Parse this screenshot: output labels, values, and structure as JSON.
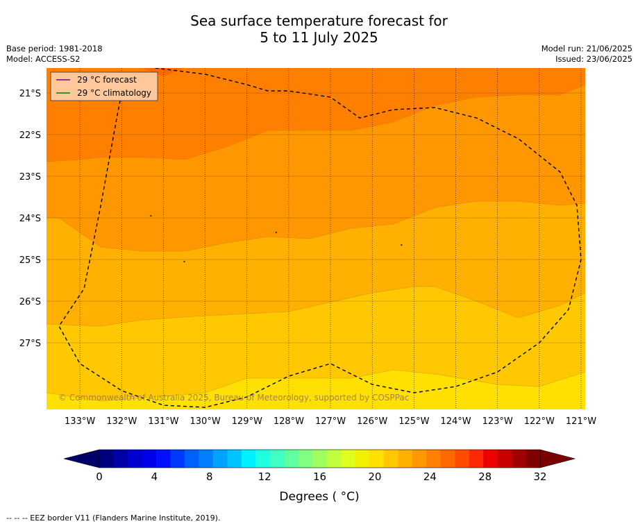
{
  "header": {
    "title_line1": "Sea surface temperature forecast for",
    "title_line2": "5 to 11 July 2025",
    "base_period": "Base period: 1981-2018",
    "model": "Model: ACCESS-S2",
    "model_run": "Model run: 21/06/2025",
    "issued": "Issued: 23/06/2025"
  },
  "map": {
    "copyright": "© Commonwealth of Australia 2025, Bureau of Meteorology, supported by COSPPac"
  },
  "legend": {
    "forecast_label": "29 °C  forecast",
    "forecast_color": "#800080",
    "climatology_label": "29 °C  climatology",
    "climatology_color": "#008000"
  },
  "colorbar": {
    "label": "Degrees ( °C)",
    "ticks": [
      "0",
      "4",
      "8",
      "12",
      "16",
      "20",
      "24",
      "28",
      "32"
    ],
    "colors": [
      "#00007f",
      "#0000a8",
      "#0000cc",
      "#0000e8",
      "#0010ff",
      "#0038ff",
      "#0060ff",
      "#0080ff",
      "#00a4ff",
      "#00c4ff",
      "#00f0ff",
      "#20ffe0",
      "#40ffc0",
      "#60ffa0",
      "#80ff80",
      "#a0ff60",
      "#c0ff40",
      "#e0ff20",
      "#f0f000",
      "#ffe000",
      "#ffc800",
      "#ffb000",
      "#ff9800",
      "#ff8000",
      "#ff6800",
      "#ff4c00",
      "#ff2800",
      "#ee0000",
      "#c80000",
      "#a00000",
      "#800000"
    ],
    "under_color": "#00006a",
    "over_color": "#7a0000"
  },
  "footer": {
    "note": "--  --  -- EEZ border V11 (Flanders Marine Institute, 2019)."
  },
  "chart_data": {
    "type": "heatmap",
    "title": "Sea surface temperature forecast for 5 to 11 July 2025",
    "x_ticks": [
      "133°W",
      "132°W",
      "131°W",
      "130°W",
      "129°W",
      "128°W",
      "127°W",
      "126°W",
      "125°W",
      "124°W",
      "123°W",
      "122°W",
      "121°W"
    ],
    "y_ticks": [
      "21°S",
      "22°S",
      "23°S",
      "24°S",
      "25°S",
      "26°S",
      "27°S"
    ],
    "x_values": [
      -133,
      -132,
      -131,
      -130,
      -129,
      -128,
      -127,
      -126,
      -125,
      -124,
      -123,
      -122,
      -121
    ],
    "y_values": [
      -21,
      -22,
      -23,
      -24,
      -25,
      -26,
      -27
    ],
    "xlim": [
      -133.8,
      -120.9
    ],
    "ylim": [
      -28.6,
      -20.4
    ],
    "contour_levels": [
      22,
      23,
      24,
      25,
      26,
      27
    ],
    "fill_colors": {
      "22-23": "#ffe000",
      "23-24": "#ffc800",
      "24-25": "#ffb000",
      "25-26": "#ff9800",
      "26-27": "#ff8000",
      "27-28": "#ff6800"
    },
    "isotherms": [
      {
        "level": 23,
        "points": [
          [
            -133.8,
            -28.2
          ],
          [
            -132.5,
            -28.4
          ],
          [
            -130.0,
            -28.2
          ],
          [
            -129.0,
            -27.85
          ],
          [
            -127.5,
            -27.85
          ],
          [
            -126.5,
            -27.85
          ],
          [
            -125.5,
            -27.65
          ],
          [
            -124.5,
            -27.75
          ],
          [
            -123.0,
            -28.0
          ],
          [
            -122.0,
            -28.05
          ],
          [
            -120.9,
            -27.7
          ]
        ]
      },
      {
        "level": 24,
        "points": [
          [
            -133.8,
            -26.55
          ],
          [
            -132.5,
            -26.6
          ],
          [
            -131.5,
            -26.45
          ],
          [
            -130.0,
            -26.35
          ],
          [
            -128.0,
            -26.25
          ],
          [
            -126.0,
            -25.8
          ],
          [
            -125.0,
            -25.65
          ],
          [
            -124.5,
            -25.65
          ],
          [
            -123.5,
            -26.0
          ],
          [
            -122.5,
            -26.4
          ],
          [
            -121.5,
            -26.1
          ],
          [
            -120.9,
            -25.8
          ]
        ]
      },
      {
        "level": 25,
        "points": [
          [
            -133.8,
            -24.0
          ],
          [
            -133.5,
            -24.0
          ],
          [
            -132.5,
            -24.7
          ],
          [
            -131.5,
            -24.8
          ],
          [
            -130.5,
            -24.8
          ],
          [
            -129.5,
            -24.6
          ],
          [
            -128.5,
            -24.45
          ],
          [
            -127.5,
            -24.5
          ],
          [
            -126.5,
            -24.25
          ],
          [
            -125.5,
            -24.15
          ],
          [
            -124.5,
            -23.75
          ],
          [
            -123.5,
            -23.6
          ],
          [
            -122.5,
            -23.6
          ],
          [
            -121.5,
            -23.7
          ],
          [
            -120.9,
            -23.65
          ]
        ]
      },
      {
        "level": 26,
        "points": [
          [
            -133.8,
            -22.65
          ],
          [
            -133.0,
            -22.6
          ],
          [
            -132.5,
            -22.55
          ],
          [
            -131.5,
            -22.55
          ],
          [
            -130.5,
            -22.6
          ],
          [
            -129.5,
            -22.3
          ],
          [
            -128.5,
            -21.9
          ],
          [
            -127.5,
            -21.9
          ],
          [
            -126.5,
            -21.9
          ],
          [
            -125.5,
            -21.7
          ],
          [
            -124.5,
            -21.3
          ],
          [
            -123.5,
            -21.1
          ],
          [
            -122.5,
            -21.05
          ],
          [
            -121.5,
            -21.05
          ],
          [
            -120.9,
            -20.8
          ]
        ]
      },
      {
        "level": 27,
        "points": [
          [
            -131.5,
            -20.4
          ],
          [
            -131.0,
            -20.6
          ],
          [
            -130.5,
            -20.4
          ]
        ]
      }
    ],
    "eez_boundary": [
      [
        -131.2,
        -20.4
      ],
      [
        -130.0,
        -20.55
      ],
      [
        -129.0,
        -20.8
      ],
      [
        -128.5,
        -20.95
      ],
      [
        -128.0,
        -20.95
      ],
      [
        -127.0,
        -21.1
      ],
      [
        -126.3,
        -21.6
      ],
      [
        -125.5,
        -21.4
      ],
      [
        -124.5,
        -21.35
      ],
      [
        -123.5,
        -21.6
      ],
      [
        -122.5,
        -22.1
      ],
      [
        -121.5,
        -22.9
      ],
      [
        -121.1,
        -23.7
      ],
      [
        -121.0,
        -25.0
      ],
      [
        -121.3,
        -26.2
      ],
      [
        -122.0,
        -27.0
      ],
      [
        -123.0,
        -27.7
      ],
      [
        -124.0,
        -28.05
      ],
      [
        -125.0,
        -28.2
      ],
      [
        -126.0,
        -28.0
      ],
      [
        -127.0,
        -27.5
      ],
      [
        -128.0,
        -27.8
      ],
      [
        -129.0,
        -28.3
      ],
      [
        -130.0,
        -28.55
      ],
      [
        -131.0,
        -28.5
      ],
      [
        -132.0,
        -28.15
      ],
      [
        -133.0,
        -27.5
      ],
      [
        -133.5,
        -26.6
      ],
      [
        -132.9,
        -25.7
      ],
      [
        -132.5,
        -23.7
      ],
      [
        -132.1,
        -21.5
      ],
      [
        -131.9,
        -20.5
      ]
    ],
    "islands": [
      [
        -131.3,
        -23.95
      ],
      [
        -128.3,
        -24.35
      ],
      [
        -130.5,
        -25.05
      ],
      [
        -125.3,
        -24.65
      ]
    ]
  }
}
